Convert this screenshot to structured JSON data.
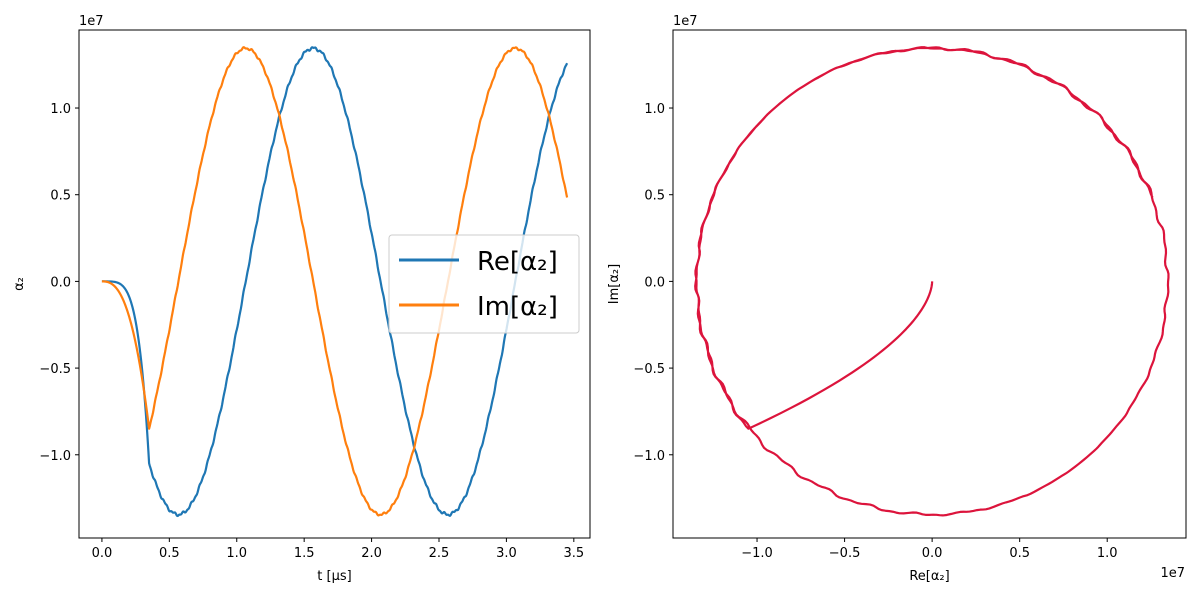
{
  "colors": {
    "re": "#1f77b4",
    "im": "#ff7f0e",
    "circle": "#dc143c"
  },
  "chart_data": [
    {
      "type": "line",
      "xlabel": "t [μs]",
      "ylabel": "α₂",
      "y_offset_label": "1e7",
      "xlim": [
        -0.17,
        3.62
      ],
      "ylim": [
        -1.48,
        1.45
      ],
      "xticks": [
        0.0,
        0.5,
        1.0,
        1.5,
        2.0,
        2.5,
        3.0,
        3.5
      ],
      "xtick_labels": [
        "0.0",
        "0.5",
        "1.0",
        "1.5",
        "2.0",
        "2.5",
        "3.0",
        "3.5"
      ],
      "yticks": [
        -1.0,
        -0.5,
        0.0,
        0.5,
        1.0
      ],
      "ytick_labels": [
        "−1.0",
        "−0.5",
        "0.0",
        "0.5",
        "1.0"
      ],
      "grid": false,
      "legend_position": "center-right",
      "series": [
        {
          "name": "Re[α₂]",
          "key": "re"
        },
        {
          "name": "Im[α₂]",
          "key": "im"
        }
      ],
      "model": {
        "t_switch": 0.35,
        "pre_switch_amplitude": {
          "re": -1.05,
          "im": -0.85
        },
        "radius": 1.345,
        "frequency_per_us": 0.5,
        "t_end": 3.45
      }
    },
    {
      "type": "line",
      "xlabel": "Re[α₂]",
      "ylabel": "Im[α₂]",
      "x_offset_label": "1e7",
      "y_offset_label": "1e7",
      "xlim": [
        -1.48,
        1.45
      ],
      "ylim": [
        -1.48,
        1.45
      ],
      "xticks": [
        -1.0,
        -0.5,
        0.0,
        0.5,
        1.0
      ],
      "xtick_labels": [
        "−1.0",
        "−0.5",
        "0.0",
        "0.5",
        "1.0"
      ],
      "yticks": [
        -1.0,
        -0.5,
        0.0,
        0.5,
        1.0
      ],
      "ytick_labels": [
        "−1.0",
        "−0.5",
        "0.0",
        "0.5",
        "1.0"
      ],
      "grid": false,
      "series": [
        {
          "key": "trajectory"
        }
      ]
    }
  ]
}
